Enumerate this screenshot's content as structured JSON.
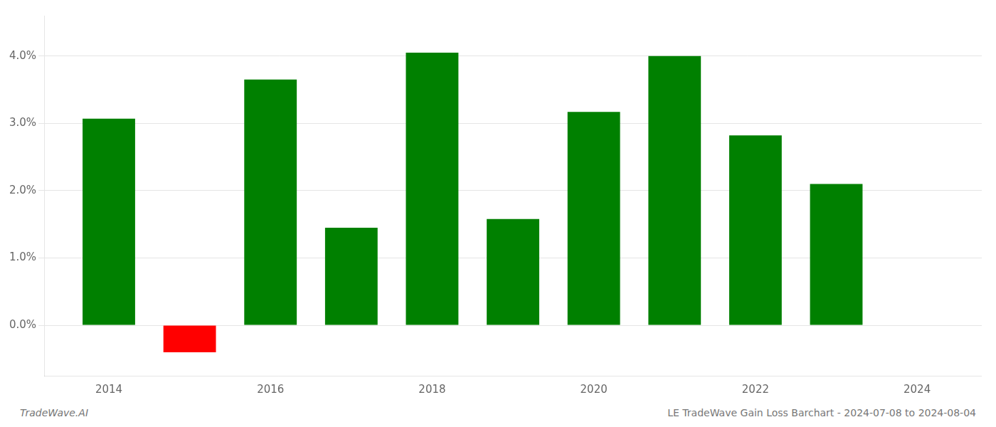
{
  "chart_data": {
    "type": "bar",
    "x": [
      2014,
      2015,
      2016,
      2017,
      2018,
      2019,
      2020,
      2021,
      2022,
      2023
    ],
    "values": [
      0.0307,
      -0.004,
      0.0365,
      0.0145,
      0.0405,
      0.0158,
      0.0317,
      0.04,
      0.0282,
      0.021
    ],
    "colors": [
      "#008000",
      "#ff0000",
      "#008000",
      "#008000",
      "#008000",
      "#008000",
      "#008000",
      "#008000",
      "#008000",
      "#008000"
    ],
    "xlim": [
      2013.2,
      2024.8
    ],
    "xticks": [
      2014,
      2016,
      2018,
      2020,
      2022,
      2024
    ],
    "ylim": [
      -0.0075,
      0.046
    ],
    "yticks": [
      {
        "value": 0.0,
        "label": "0.0%"
      },
      {
        "value": 0.01,
        "label": "1.0%"
      },
      {
        "value": 0.02,
        "label": "2.0%"
      },
      {
        "value": 0.03,
        "label": "3.0%"
      },
      {
        "value": 0.04,
        "label": "4.0%"
      }
    ],
    "grid": "y",
    "annotations": [
      "TradeWave.AI",
      "LE TradeWave Gain Loss Barchart - 2024-07-08 to 2024-08-04"
    ]
  }
}
